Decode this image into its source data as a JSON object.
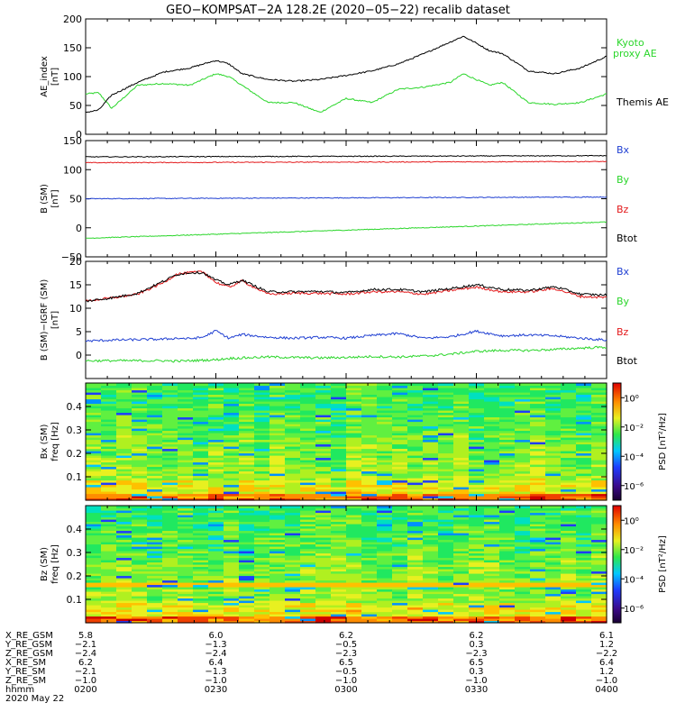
{
  "title": "GEO−KOMPSAT−2A 128.2E (2020−05−22) recalib dataset",
  "colors": {
    "black": "#000000",
    "red": "#e31a1c",
    "blue": "#1f3fd2",
    "green": "#2bd62b",
    "kyoto": "#2bd62b"
  },
  "chart_data": [
    {
      "id": "ae",
      "type": "line",
      "ylabel": "AE_index",
      "yunit": "[nT]",
      "ylim": [
        0,
        200
      ],
      "yticks": [
        "0",
        "50",
        "100",
        "150",
        "200"
      ],
      "ytick_values": [
        0,
        50,
        100,
        150,
        200
      ],
      "x_hours": [
        2.0,
        2.05,
        2.1,
        2.2,
        2.3,
        2.4,
        2.5,
        2.55,
        2.6,
        2.7,
        2.8,
        2.9,
        3.0,
        3.1,
        3.2,
        3.3,
        3.4,
        3.45,
        3.5,
        3.55,
        3.6,
        3.7,
        3.8,
        3.9,
        4.0
      ],
      "series": [
        {
          "name": "Kyoto proxy AE",
          "color": "green",
          "values": [
            70,
            72,
            45,
            85,
            88,
            85,
            105,
            100,
            85,
            55,
            55,
            38,
            62,
            55,
            78,
            82,
            90,
            105,
            95,
            85,
            90,
            55,
            52,
            55,
            70
          ]
        },
        {
          "name": "Themis AE",
          "color": "black",
          "values": [
            38,
            42,
            68,
            90,
            108,
            115,
            128,
            122,
            105,
            95,
            92,
            95,
            102,
            110,
            122,
            140,
            160,
            170,
            158,
            145,
            140,
            110,
            105,
            115,
            135
          ]
        }
      ],
      "legend": [
        "Kyoto",
        "proxy AE",
        "Themis AE"
      ]
    },
    {
      "id": "bsm",
      "type": "line",
      "ylabel": "B (SM)",
      "yunit": "[nT]",
      "ylim": [
        -50,
        150
      ],
      "yticks": [
        "−50",
        "0",
        "50",
        "100",
        "150"
      ],
      "ytick_values": [
        -50,
        0,
        50,
        100,
        150
      ],
      "x_hours": [
        2.0,
        4.0
      ],
      "series": [
        {
          "name": "Bx",
          "color": "blue",
          "values": [
            50,
            53
          ]
        },
        {
          "name": "By",
          "color": "green",
          "values": [
            -18,
            10
          ]
        },
        {
          "name": "Bz",
          "color": "red",
          "values": [
            112,
            114
          ]
        },
        {
          "name": "Btot",
          "color": "black",
          "values": [
            122,
            124
          ]
        }
      ],
      "legend": [
        "Bx",
        "By",
        "Bz",
        "Btot"
      ]
    },
    {
      "id": "bdiff",
      "type": "line",
      "ylabel": "B (SM)−IGRF (SM)",
      "yunit": "[nT]",
      "ylim": [
        -5,
        20
      ],
      "yticks": [
        "0",
        "5",
        "10",
        "15",
        "20"
      ],
      "ytick_values": [
        0,
        5,
        10,
        15,
        20
      ],
      "x_hours": [
        2.0,
        2.1,
        2.2,
        2.3,
        2.35,
        2.4,
        2.45,
        2.5,
        2.55,
        2.6,
        2.7,
        2.8,
        2.9,
        3.0,
        3.1,
        3.2,
        3.3,
        3.4,
        3.5,
        3.6,
        3.7,
        3.8,
        3.9,
        4.0
      ],
      "series": [
        {
          "name": "Bx",
          "color": "blue",
          "values": [
            3,
            3.2,
            3.3,
            3.4,
            3.6,
            3.5,
            3.8,
            5.2,
            3.6,
            4.4,
            3.8,
            3.6,
            3.8,
            3.6,
            4.2,
            4.6,
            3.6,
            3.9,
            5.1,
            4.1,
            4.3,
            4.1,
            3.6,
            3.2
          ]
        },
        {
          "name": "By",
          "color": "green",
          "values": [
            -1.2,
            -1.2,
            -1.2,
            -1.2,
            -1.3,
            -1.2,
            -1.1,
            -1.0,
            -0.7,
            -0.6,
            -0.4,
            -0.5,
            -0.6,
            -0.5,
            -0.3,
            -0.4,
            -0.2,
            0.2,
            0.8,
            1.0,
            1.0,
            1.2,
            1.5,
            1.7
          ]
        },
        {
          "name": "Bz",
          "color": "red",
          "values": [
            11.5,
            12.2,
            13.0,
            15.5,
            17.3,
            17.6,
            17.8,
            15.5,
            14.5,
            15.8,
            13.0,
            13.2,
            13.2,
            13.0,
            13.5,
            13.5,
            13.0,
            13.8,
            14.5,
            13.5,
            13.5,
            14.2,
            12.5,
            12.3
          ]
        },
        {
          "name": "Btot",
          "color": "black",
          "values": [
            11.5,
            12.2,
            13.2,
            15.8,
            17.2,
            17.6,
            17.6,
            16.0,
            15.0,
            16.0,
            13.5,
            13.5,
            13.6,
            13.3,
            14.0,
            14.0,
            13.5,
            14.2,
            15.0,
            14.0,
            13.8,
            14.6,
            13.0,
            12.8
          ]
        }
      ],
      "legend": [
        "Bx",
        "By",
        "Bz",
        "Btot"
      ]
    },
    {
      "id": "spec_bx",
      "type": "heatmap",
      "ylabel": "Bx (SM)",
      "yunit": "freq [Hz]",
      "ylim": [
        0,
        0.5
      ],
      "yticks": [
        "0.1",
        "0.2",
        "0.3",
        "0.4"
      ],
      "ytick_values": [
        0.1,
        0.2,
        0.3,
        0.4
      ],
      "colorbar_label": "PSD [nT²/Hz]",
      "colorbar_ticks": [
        "10⁰",
        "10⁻²",
        "10⁻⁴",
        "10⁻⁶"
      ],
      "colorbar_tick_exponents": [
        0,
        -2,
        -4,
        -6
      ],
      "colorbar_range_exponents": [
        -7,
        1
      ]
    },
    {
      "id": "spec_bz",
      "type": "heatmap",
      "ylabel": "Bz (SM)",
      "yunit": "freq [Hz]",
      "ylim": [
        0,
        0.5
      ],
      "yticks": [
        "0.1",
        "0.2",
        "0.3",
        "0.4"
      ],
      "ytick_values": [
        0.1,
        0.2,
        0.3,
        0.4
      ],
      "colorbar_label": "PSD [nT²/Hz]",
      "colorbar_ticks": [
        "10⁰",
        "10⁻²",
        "10⁻⁴",
        "10⁻⁶"
      ],
      "colorbar_tick_exponents": [
        0,
        -2,
        -4,
        -6
      ],
      "colorbar_range_exponents": [
        -7,
        1
      ]
    }
  ],
  "xlim_hours": [
    2.0,
    4.0
  ],
  "ephemeris": {
    "rows": [
      {
        "label": "X_RE_GSM",
        "values": [
          "5.8",
          "6.0",
          "6.2",
          "6.2",
          "6.1"
        ]
      },
      {
        "label": "Y_RE_GSM",
        "values": [
          "−2.1",
          "−1.3",
          "−0.5",
          "0.3",
          "1.2"
        ]
      },
      {
        "label": "Z_RE_GSM",
        "values": [
          "−2.4",
          "−2.4",
          "−2.3",
          "−2.3",
          "−2.2"
        ]
      },
      {
        "label": "X_RE_SM",
        "values": [
          "6.2",
          "6.4",
          "6.5",
          "6.5",
          "6.4"
        ]
      },
      {
        "label": "Y_RE_SM",
        "values": [
          "−2.1",
          "−1.3",
          "−0.5",
          "0.3",
          "1.2"
        ]
      },
      {
        "label": "Z_RE_SM",
        "values": [
          "−1.0",
          "−1.0",
          "−1.0",
          "−1.0",
          "−1.0"
        ]
      },
      {
        "label": "hhmm",
        "values": [
          "0200",
          "0230",
          "0300",
          "0330",
          "0400"
        ]
      }
    ],
    "date": "2020 May 22"
  }
}
